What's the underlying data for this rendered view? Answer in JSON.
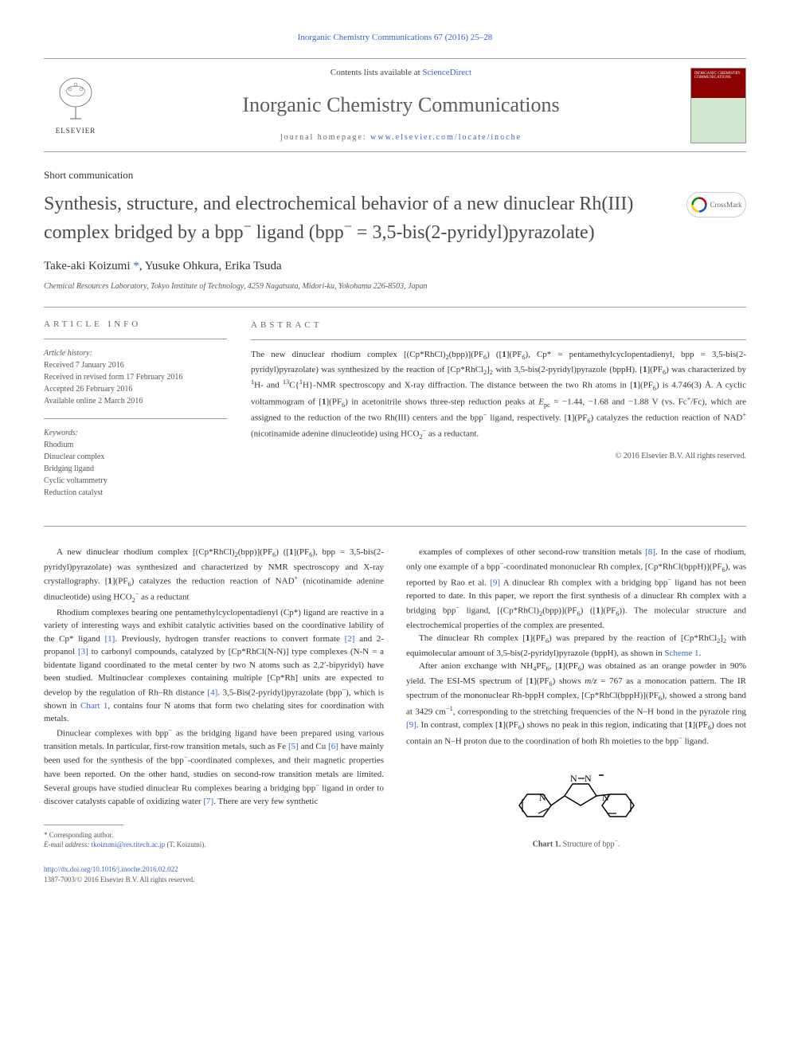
{
  "header": {
    "citation": "Inorganic Chemistry Communications 67 (2016) 25–28",
    "contents_prefix": "Contents lists available at ",
    "contents_link": "ScienceDirect",
    "journal_name": "Inorganic Chemistry Communications",
    "homepage_label": "journal homepage: ",
    "homepage_url": "www.elsevier.com/locate/inoche",
    "elsevier_label": "ELSEVIER",
    "cover_text": "INORGANIC CHEMISTRY COMMUNICATIONS"
  },
  "article": {
    "type": "Short communication",
    "title_html": "Synthesis, structure, and electrochemical behavior of a new dinuclear Rh(III) complex bridged by a bpp<sup>−</sup> ligand (bpp<sup>−</sup> = 3,5-bis(2-pyridyl)pyrazolate)",
    "crossmark": "CrossMark",
    "authors_html": "Take-aki Koizumi <span class=\"star\">*</span>, Yusuke Ohkura, Erika Tsuda",
    "affiliation": "Chemical Resources Laboratory, Tokyo Institute of Technology, 4259 Nagatsuta, Midori-ku, Yokohama 226-8503, Japan"
  },
  "info": {
    "head": "ARTICLE INFO",
    "history_label": "Article history:",
    "received": "Received 7 January 2016",
    "revised": "Received in revised form 17 February 2016",
    "accepted": "Accepted 26 February 2016",
    "online": "Available online 2 March 2016",
    "keywords_label": "Keywords:",
    "keywords": [
      "Rhodium",
      "Dinuclear complex",
      "Bridging ligand",
      "Cyclic voltammetry",
      "Reduction catalyst"
    ]
  },
  "abstract": {
    "head": "ABSTRACT",
    "text_html": "The new dinuclear rhodium complex [(Cp*RhCl)<sub>2</sub>(bpp)](PF<sub>6</sub>) ([<b>1</b>](PF<sub>6</sub>), Cp* = pentamethylcyclopentadienyl, bpp = 3,5-bis(2-pyridyl)pyrazolate) was synthesized by the reaction of [Cp*RhCl<sub>2</sub>]<sub>2</sub> with 3,5-bis(2-pyridyl)pyrazole (bppH). [<b>1</b>](PF<sub>6</sub>) was characterized by <sup>1</sup>H- and <sup>13</sup>C{<sup>1</sup>H}-NMR spectroscopy and X-ray diffraction. The distance between the two Rh atoms in [<b>1</b>](PF<sub>6</sub>) is 4.746(3) Å. A cyclic voltammogram of [<b>1</b>](PF<sub>6</sub>) in acetonitrile shows three-step reduction peaks at <i>E</i><sub>pc</sub> = −1.44, −1.68 and −1.88 V (vs. Fc<sup>+</sup>/Fc), which are assigned to the reduction of the two Rh(III) centers and the bpp<sup>−</sup> ligand, respectively. [<b>1</b>](PF<sub>6</sub>) catalyzes the reduction reaction of NAD<sup>+</sup> (nicotinamide adenine dinucleotide) using HCO<sub>2</sub><sup>−</sup> as a reductant.",
    "copyright": "© 2016 Elsevier B.V. All rights reserved."
  },
  "body": {
    "left": [
      "A new dinuclear rhodium complex [(Cp*RhCl)<sub>2</sub>(bpp)](PF<sub>6</sub>) ([<b>1</b>](PF<sub>6</sub>), bpp = 3,5-bis(2-pyridyl)pyrazolate) was synthesized and characterized by NMR spectroscopy and X-ray crystallography. [<b>1</b>](PF<sub>6</sub>) catalyzes the reduction reaction of NAD<sup>+</sup> (nicotinamide adenine dinucleotide) using HCO<sub>2</sub><sup>−</sup> as a reductant",
      "Rhodium complexes bearing one pentamethylcyclopentadienyl (Cp*) ligand are reactive in a variety of interesting ways and exhibit catalytic activities based on the coordinative lability of the Cp* ligand <span class=\"ref-link\">[1]</span>. Previously, hydrogen transfer reactions to convert formate <span class=\"ref-link\">[2]</span> and 2-propanol <span class=\"ref-link\">[3]</span> to carbonyl compounds, catalyzed by [Cp*RhCl(N-N)] type complexes (N-N = a bidentate ligand coordinated to the metal center by two N atoms such as 2,2′-bipyridyl) have been studied. Multinuclear complexes containing multiple [Cp*Rh] units are expected to develop by the regulation of Rh–Rh distance <span class=\"ref-link\">[4]</span>. 3,5-Bis(2-pyridyl)pyrazolate (bpp<sup>−</sup>), which is shown in <span class=\"ref-link\">Chart 1</span>, contains four N atoms that form two chelating sites for coordination with metals.",
      "Dinuclear complexes with bpp<sup>−</sup> as the bridging ligand have been prepared using various transition metals. In particular, first-row transition metals, such as Fe <span class=\"ref-link\">[5]</span> and Cu <span class=\"ref-link\">[6]</span> have mainly been used for the synthesis of the bpp<sup>−</sup>-coordinated complexes, and their magnetic properties have been reported. On the other hand, studies on second-row transition metals are limited. Several groups have studied dinuclear Ru complexes bearing a bridging bpp<sup>−</sup> ligand in order to discover catalysts capable of oxidizing water <span class=\"ref-link\">[7]</span>. There are very few synthetic"
    ],
    "right": [
      "examples of complexes of other second-row transition metals <span class=\"ref-link\">[8]</span>. In the case of rhodium, only one example of a bpp<sup>−</sup>-coordinated mononuclear Rh complex, [Cp*RhCl(bppH)](PF<sub>6</sub>), was reported by Rao et al. <span class=\"ref-link\">[9]</span> A dinuclear Rh complex with a bridging bpp<sup>−</sup> ligand has not been reported to date. In this paper, we report the first synthesis of a dinuclear Rh complex with a bridging bpp<sup>−</sup> ligand, [(Cp*RhCl)<sub>2</sub>(bpp)](PF<sub>6</sub>) ([<b>1</b>](PF<sub>6</sub>)). The molecular structure and electrochemical properties of the complex are presented.",
      "The dinuclear Rh complex [<b>1</b>](PF<sub>6</sub>) was prepared by the reaction of [Cp*RhCl<sub>2</sub>]<sub>2</sub> with equimolecular amount of 3,5-bis(2-pyridyl)pyrazole (bppH), as shown in <span class=\"ref-link\">Scheme 1</span>.",
      "After anion exchange with NH<sub>4</sub>PF<sub>6</sub>, [<b>1</b>](PF<sub>6</sub>) was obtained as an orange powder in 90% yield. The ESI-MS spectrum of [<b>1</b>](PF<sub>6</sub>) shows <i>m/z</i> = 767 as a monocation pattern. The IR spectrum of the mononuclear Rh-bppH complex, [Cp*RhCl(bppH)](PF<sub>6</sub>), showed a strong band at 3429 cm<sup>−1</sup>, corresponding to the stretching frequencies of the N–H bond in the pyrazole ring <span class=\"ref-link\">[9]</span>. In contrast, complex [<b>1</b>](PF<sub>6</sub>) shows no peak in this region, indicating that [<b>1</b>](PF<sub>6</sub>) does not contain an N–H proton due to the coordination of both Rh moieties to the bpp<sup>−</sup> ligand."
    ]
  },
  "chart1": {
    "caption_html": "<b>Chart 1.</b> Structure of bpp<sup>−</sup>."
  },
  "footnote": {
    "corr": "* Corresponding author.",
    "email_label": "E-mail address: ",
    "email": "tkoizumi@res.titech.ac.jp",
    "email_suffix": " (T. Koizumi)."
  },
  "footer": {
    "doi": "http://dx.doi.org/10.1016/j.inoche.2016.02.022",
    "issn_line": "1387-7003/© 2016 Elsevier B.V. All rights reserved."
  },
  "colors": {
    "link": "#3366cc",
    "text": "#333333",
    "muted": "#666666",
    "rule": "#999999",
    "elsevier_orange": "#ff6600",
    "cover_red": "#8b0000"
  }
}
